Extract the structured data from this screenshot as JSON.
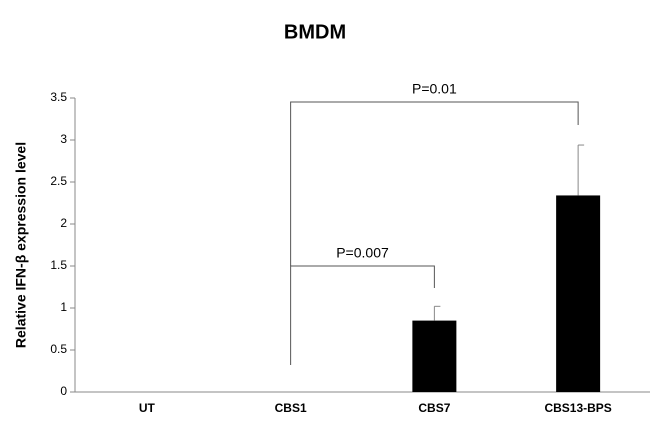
{
  "chart_data": {
    "type": "bar",
    "title": "BMDM",
    "y_label": "Relative IFN-β expression level",
    "categories": [
      "UT",
      "CBS1",
      "CBS7",
      "CBS13-BPS"
    ],
    "values": [
      0,
      0,
      0.85,
      2.34
    ],
    "errors": [
      null,
      null,
      0.17,
      0.6
    ],
    "color": "#000000",
    "ylim": [
      0,
      3.5
    ],
    "yticks": [
      0,
      0.5,
      1,
      1.5,
      2,
      2.5,
      3,
      3.5
    ],
    "grid": false,
    "annotations": [
      "P=0.007",
      "P=0.01"
    ]
  }
}
